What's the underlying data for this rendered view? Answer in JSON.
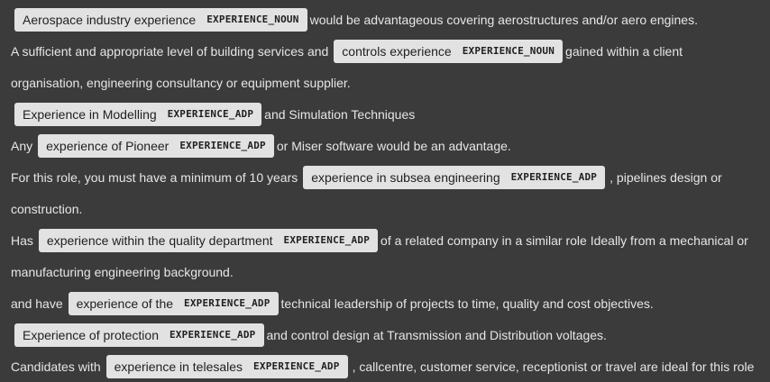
{
  "lines": [
    [
      {
        "type": "ent",
        "text": "Aerospace industry experience",
        "label": "EXPERIENCE_NOUN"
      },
      {
        "type": "text",
        "text": "would be advantageous covering aerostructures and/or aero engines."
      }
    ],
    [
      {
        "type": "text",
        "text": "A sufficient and appropriate level of building services and"
      },
      {
        "type": "ent",
        "text": "controls experience",
        "label": "EXPERIENCE_NOUN"
      },
      {
        "type": "text",
        "text": "gained within a client"
      }
    ],
    [
      {
        "type": "text",
        "text": "organisation, engineering consultancy or equipment supplier."
      }
    ],
    [
      {
        "type": "ent",
        "text": "Experience in Modelling",
        "label": "EXPERIENCE_ADP"
      },
      {
        "type": "text",
        "text": "and Simulation Techniques"
      }
    ],
    [
      {
        "type": "text",
        "text": "Any"
      },
      {
        "type": "ent",
        "text": "experience of Pioneer",
        "label": "EXPERIENCE_ADP"
      },
      {
        "type": "text",
        "text": "or Miser software would be an advantage."
      }
    ],
    [
      {
        "type": "text",
        "text": "For this role, you must have a minimum of 10 years"
      },
      {
        "type": "ent",
        "text": "experience in subsea engineering",
        "label": "EXPERIENCE_ADP"
      },
      {
        "type": "text",
        "text": ", pipelines design or"
      }
    ],
    [
      {
        "type": "text",
        "text": "construction."
      }
    ],
    [
      {
        "type": "text",
        "text": "Has"
      },
      {
        "type": "ent",
        "text": "experience within the quality department",
        "label": "EXPERIENCE_ADP"
      },
      {
        "type": "text",
        "text": "of a related company in a similar role Ideally from a mechanical or"
      }
    ],
    [
      {
        "type": "text",
        "text": "manufacturing engineering background."
      }
    ],
    [
      {
        "type": "text",
        "text": "and have"
      },
      {
        "type": "ent",
        "text": "experience of the",
        "label": "EXPERIENCE_ADP"
      },
      {
        "type": "text",
        "text": "technical leadership of projects to time, quality and cost objectives."
      }
    ],
    [
      {
        "type": "ent",
        "text": "Experience of protection",
        "label": "EXPERIENCE_ADP"
      },
      {
        "type": "text",
        "text": "and control design at Transmission and Distribution voltages."
      }
    ],
    [
      {
        "type": "text",
        "text": "Candidates with"
      },
      {
        "type": "ent",
        "text": "experience in telesales",
        "label": "EXPERIENCE_ADP"
      },
      {
        "type": "text",
        "text": ", callcentre, customer service, receptionist or travel are ideal for this role"
      }
    ]
  ]
}
